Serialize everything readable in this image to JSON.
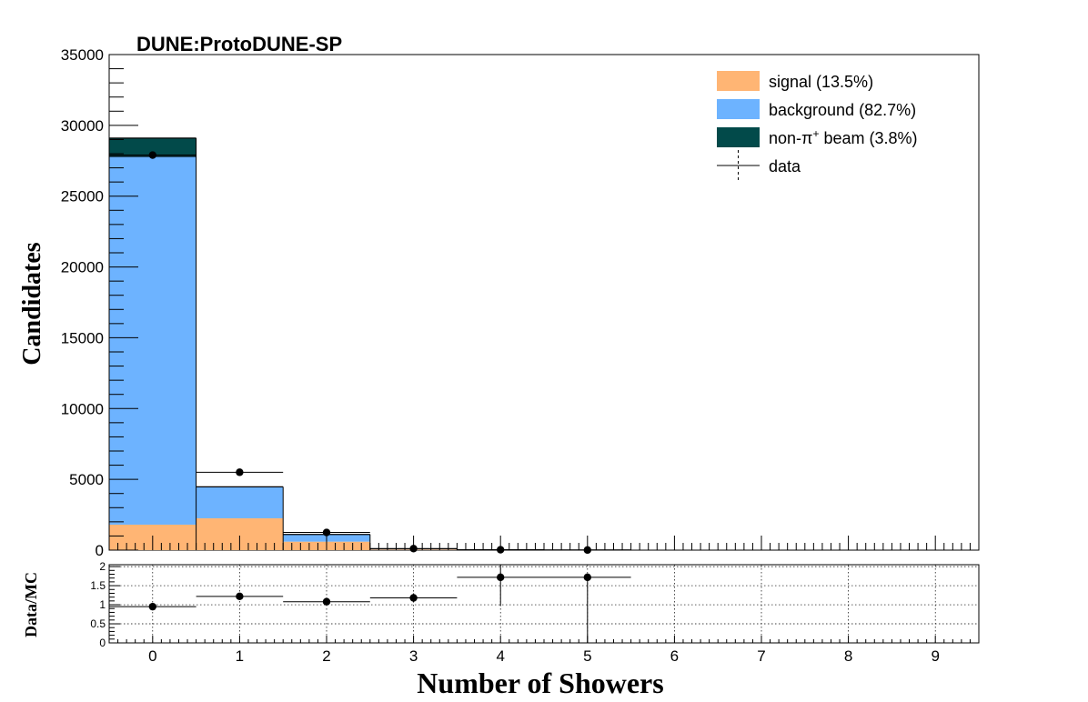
{
  "chart_data": [
    {
      "type": "bar",
      "stacked": true,
      "title": "DUNE:ProtoDUNE-SP",
      "xlabel": "Number of Showers",
      "ylabel": "Candidates",
      "x_range": [
        -0.5,
        9.5
      ],
      "ylim": [
        0,
        35000
      ],
      "y_ticks": [
        "0",
        "5000",
        "10000",
        "15000",
        "20000",
        "25000",
        "30000",
        "35000"
      ],
      "x_ticks": [
        "0",
        "1",
        "2",
        "3",
        "4",
        "5",
        "6",
        "7",
        "8",
        "9"
      ],
      "bins": [
        0,
        1,
        2,
        3,
        4,
        5
      ],
      "series": [
        {
          "name": "signal (13.5%)",
          "color": "#ffb574",
          "values": [
            1800,
            2250,
            600,
            50,
            10,
            5
          ]
        },
        {
          "name": "background (82.7%)",
          "color": "#6db3ff",
          "values": [
            26000,
            2200,
            500,
            40,
            8,
            4
          ]
        },
        {
          "name": "non-π+ beam (3.8%)",
          "color": "#024a4a",
          "values": [
            1300,
            20,
            10,
            2,
            0,
            0
          ]
        }
      ],
      "data_series": {
        "name": "data",
        "x": [
          0,
          1,
          2,
          3,
          4,
          5
        ],
        "y": [
          27900,
          5500,
          1250,
          110,
          30,
          10
        ]
      },
      "legend": {
        "position": "top-right",
        "entries": [
          {
            "label_prefix": "signal (13.5%)",
            "sup": "",
            "label_suffix": ""
          },
          {
            "label_prefix": "background (82.7%)",
            "sup": "",
            "label_suffix": ""
          },
          {
            "label_prefix": "non-π",
            "sup": "+",
            "label_suffix": " beam (3.8%)"
          },
          {
            "label_prefix": "data",
            "sup": "",
            "label_suffix": ""
          }
        ]
      },
      "grid": false
    },
    {
      "type": "scatter",
      "ylabel": "Data/MC",
      "xlabel": "Number of Showers",
      "x_range": [
        -0.5,
        9.5
      ],
      "ylim": [
        0,
        2.05
      ],
      "y_ticks": [
        "0",
        "0.5",
        "1",
        "1.5",
        "2"
      ],
      "y_tick_values": [
        0,
        0.5,
        1,
        1.5,
        2
      ],
      "x": [
        0,
        1,
        2,
        3,
        4,
        5
      ],
      "y": [
        0.95,
        1.22,
        1.08,
        1.18,
        1.72,
        1.72
      ],
      "y_err_low": [
        0.03,
        0.05,
        0.05,
        0.12,
        0.75,
        1.72
      ],
      "y_err_high": [
        0.03,
        0.05,
        0.05,
        0.12,
        0.75,
        0.0
      ],
      "grid": true
    }
  ]
}
